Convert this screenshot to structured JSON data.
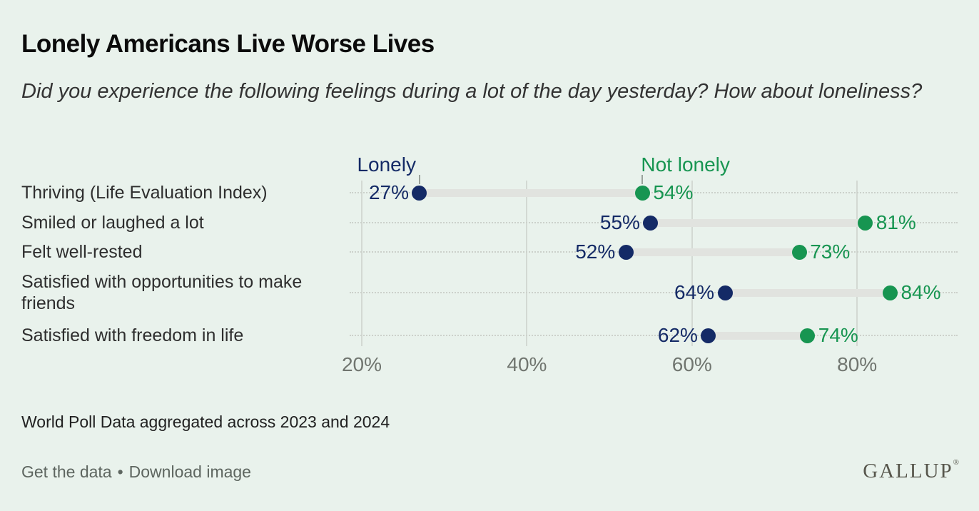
{
  "page": {
    "title": "Lonely Americans Live Worse Lives",
    "subtitle": "Did you experience the following feelings during a lot of the day yesterday? How about loneliness?",
    "source": "World Poll Data aggregated across 2023 and 2024",
    "footer": {
      "get_data": "Get the data",
      "separator": "•",
      "download_image": "Download image"
    },
    "logo": {
      "text": "GALLUP",
      "registered": "®"
    }
  },
  "colors": {
    "background": "#e9f2ec",
    "title_text": "#0b0b0b",
    "subtitle_text": "#333333",
    "category_text": "#2e2e2e",
    "lonely": "#142a66",
    "not_lonely": "#179551",
    "connector": "#e1e3df",
    "gridline": "#d3d9d3",
    "dotted_line": "#ccd1cb",
    "tick": "#9aa29b",
    "axis_text": "#70756f",
    "source_text": "#212121",
    "footer_text": "#5e6660",
    "logo_text": "#57564c"
  },
  "chart_data": {
    "type": "dumbbell",
    "title": "Lonely Americans Live Worse Lives",
    "categories": [
      "Thriving (Life Evaluation Index)",
      "Smiled or laughed a lot",
      "Felt well-rested",
      "Satisfied with opportunities to make friends",
      "Satisfied with freedom in life"
    ],
    "series": [
      {
        "name": "Lonely",
        "color": "#142a66",
        "values": [
          27,
          55,
          52,
          64,
          62
        ]
      },
      {
        "name": "Not lonely",
        "color": "#179551",
        "values": [
          54,
          81,
          73,
          84,
          74
        ]
      }
    ],
    "value_suffix": "%",
    "x_ticks": [
      {
        "value": 20,
        "label": "20%"
      },
      {
        "value": 40,
        "label": "40%"
      },
      {
        "value": 60,
        "label": "60%"
      },
      {
        "value": 80,
        "label": "80%"
      }
    ],
    "xlim": [
      18,
      92
    ],
    "grid": "vertical solid gridlines at ticks, horizontal dotted guide per row",
    "legend_position": "top, anchored to first-row data points"
  }
}
